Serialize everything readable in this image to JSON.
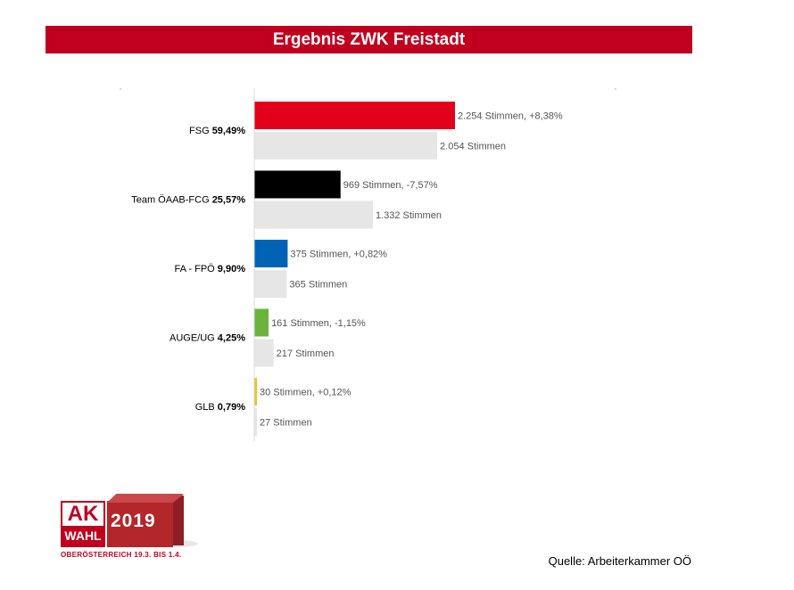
{
  "title": "Ergebnis ZWK Freistadt",
  "source": "Quelle: Arbeiterkammer OÖ",
  "logo": {
    "ak": "AK",
    "wahl": "WAHL",
    "year": "2019",
    "tagline": "OBERÖSTERREICH 19.3. BIS 1.4."
  },
  "chart_data": {
    "type": "bar",
    "orientation": "horizontal",
    "categories": [
      {
        "name": "FSG",
        "percent": "59,49%"
      },
      {
        "name": "Team ÖAAB-FCG",
        "percent": "25,57%"
      },
      {
        "name": "FA - FPÖ",
        "percent": "9,90%"
      },
      {
        "name": "AUGE/UG",
        "percent": "4,25%"
      },
      {
        "name": "GLB",
        "percent": "0,79%"
      }
    ],
    "series": [
      {
        "values": [
          2254,
          969,
          375,
          161,
          30
        ],
        "labels": [
          "2.254 Stimmen, +8,38%",
          "969 Stimmen, -7,57%",
          "375 Stimmen, +0,82%",
          "161 Stimmen, -1,15%",
          "30 Stimmen, +0,12%"
        ],
        "colors": [
          "#e3001b",
          "#000000",
          "#0063b4",
          "#6ab43e",
          "#f0c419"
        ]
      },
      {
        "values": [
          2054,
          1332,
          365,
          217,
          27
        ],
        "labels": [
          "2.054 Stimmen",
          "1.332 Stimmen",
          "365 Stimmen",
          "217 Stimmen",
          "27 Stimmen"
        ],
        "color": "#e6e6e6"
      }
    ],
    "xlim": [
      0,
      4000
    ]
  }
}
